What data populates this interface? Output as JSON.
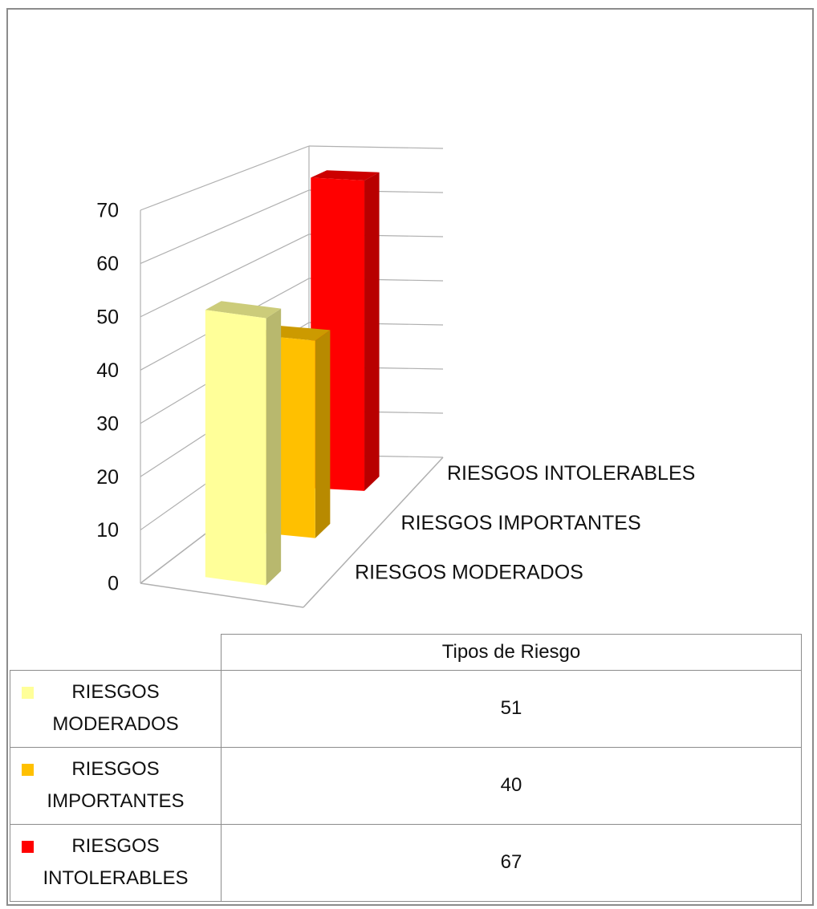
{
  "chart_data": {
    "type": "bar3d",
    "categories": [
      "Tipos de Riesgo"
    ],
    "series": [
      {
        "name": "RIESGOS MODERADOS",
        "color": "#ffff99",
        "values": [
          51
        ]
      },
      {
        "name": "RIESGOS IMPORTANTES",
        "color": "#ffc000",
        "values": [
          40
        ]
      },
      {
        "name": "RIESGOS INTOLERABLES",
        "color": "#ff0000",
        "values": [
          67
        ]
      }
    ],
    "ylim": [
      0,
      70
    ],
    "yticks": [
      0,
      10,
      20,
      30,
      40,
      50,
      60,
      70
    ],
    "grid": true,
    "data_table": true
  }
}
